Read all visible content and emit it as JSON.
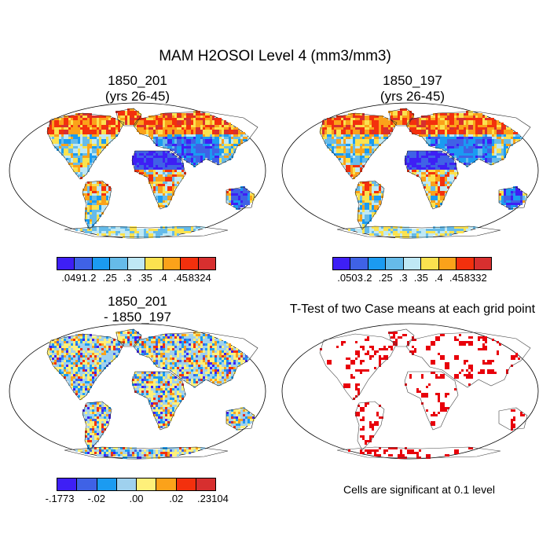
{
  "title": "MAM H2OSOI Level 4 (mm3/mm3)",
  "chart_data": [
    {
      "type": "map",
      "title_line1": "1850_201",
      "title_line2": "(yrs 26-45)",
      "colorbar": {
        "colors": [
          "#3e1ff5",
          "#3f62e6",
          "#1b9bf1",
          "#66bbe9",
          "#bfe8f4",
          "#fbe24f",
          "#fba21a",
          "#f3300d",
          "#d72f2f"
        ],
        "labels": [
          ".0491",
          ".2",
          ".25",
          ".3",
          ".35",
          ".4",
          ".45",
          ".8324"
        ]
      }
    },
    {
      "type": "map",
      "title_line1": "1850_197",
      "title_line2": "(yrs 26-45)",
      "colorbar": {
        "colors": [
          "#3e1ff5",
          "#3f62e6",
          "#1b9bf1",
          "#66bbe9",
          "#bfe8f4",
          "#fbe24f",
          "#fba21a",
          "#f3300d",
          "#d72f2f"
        ],
        "labels": [
          ".0503",
          ".2",
          ".25",
          ".3",
          ".35",
          ".4",
          ".45",
          ".8332"
        ]
      }
    },
    {
      "type": "map",
      "title_line1": "1850_201",
      "title_line2": "- 1850_197",
      "colorbar": {
        "colors": [
          "#3e1ff5",
          "#3f62e6",
          "#1b9bf1",
          "#9fd1ee",
          "#fef07a",
          "#fba21a",
          "#f3300d",
          "#d72f2f"
        ],
        "labels": [
          "-.1773",
          "-.02",
          ".00",
          ".02",
          ".23104"
        ]
      }
    },
    {
      "type": "map",
      "title_line1": "T-Test of two Case means at each grid point",
      "significance_color": "#e8000b",
      "note": "Cells are significant at 0.1 level"
    }
  ]
}
